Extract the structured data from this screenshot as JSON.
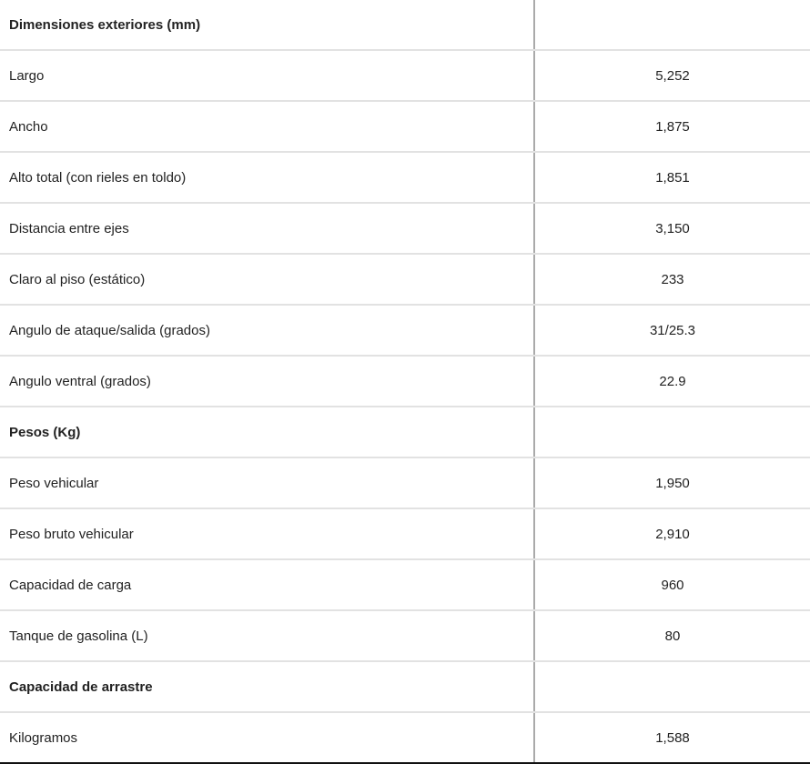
{
  "rows": [
    {
      "label": "Dimensiones exteriores (mm)",
      "value": "",
      "section": true
    },
    {
      "label": "Largo",
      "value": "5,252"
    },
    {
      "label": "Ancho",
      "value": "1,875"
    },
    {
      "label": "Alto total (con rieles en toldo)",
      "value": "1,851"
    },
    {
      "label": "Distancia entre ejes",
      "value": "3,150"
    },
    {
      "label": "Claro al piso (estático)",
      "value": "233"
    },
    {
      "label": "Angulo de ataque/salida (grados)",
      "value": "31/25.3"
    },
    {
      "label": "Angulo ventral (grados)",
      "value": "22.9"
    },
    {
      "label": "Pesos (Kg)",
      "value": "",
      "section": true
    },
    {
      "label": "Peso vehicular",
      "value": "1,950"
    },
    {
      "label": "Peso bruto vehicular",
      "value": "2,910"
    },
    {
      "label": "Capacidad de carga",
      "value": "960"
    },
    {
      "label": "Tanque de gasolina (L)",
      "value": "80"
    },
    {
      "label": "Capacidad de arrastre",
      "value": "",
      "section": true
    },
    {
      "label": "Kilogramos",
      "value": "1,588"
    }
  ]
}
